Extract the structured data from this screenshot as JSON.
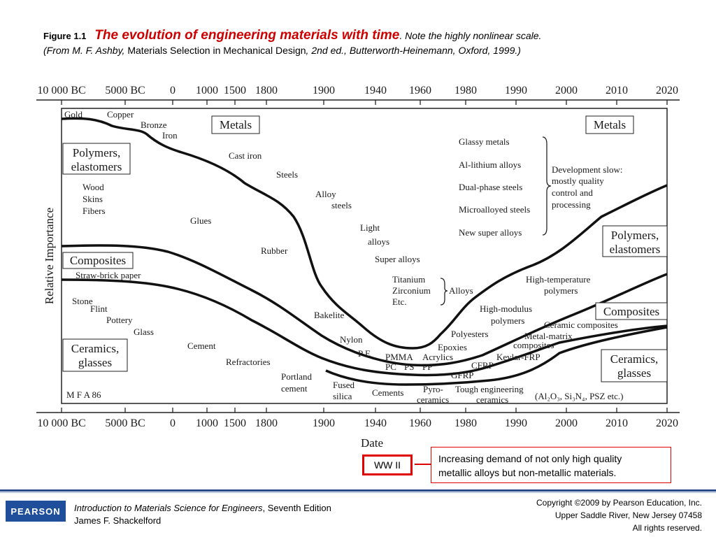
{
  "caption": {
    "figure_label": "Figure 1.1",
    "title": "The evolution of engineering materials with time",
    "title_tail": ". Note the highly nonlinear scale.",
    "source_italic_1": "(From M. F. Ashby, ",
    "source_book": "Materials Selection in Mechanical Design",
    "source_italic_2": ", 2nd ed., Butterworth-Heinemann, Oxford, 1999.)"
  },
  "diagram": {
    "axis_ticks": [
      "10 000 BC",
      "5000 BC",
      "0",
      "1000",
      "1500",
      "1800",
      "1900",
      "1940",
      "1960",
      "1980",
      "1990",
      "2000",
      "2010",
      "2020"
    ],
    "y_label": "Relative Importance",
    "x_label": "Date",
    "boxes": {
      "metals_left": "Metals",
      "metals_right": "Metals",
      "polymers_left_1": "Polymers,",
      "polymers_left_2": "elastomers",
      "polymers_right_1": "Polymers,",
      "polymers_right_2": "elastomers",
      "composites_left": "Composites",
      "composites_right": "Composites",
      "ceramics_left_1": "Ceramics,",
      "ceramics_left_2": "glasses",
      "ceramics_right_1": "Ceramics,",
      "ceramics_right_2": "glasses"
    },
    "labels": {
      "gold": "Gold",
      "copper": "Copper",
      "bronze": "Bronze",
      "iron": "Iron",
      "cast_iron": "Cast iron",
      "steels": "Steels",
      "alloy": "Alloy",
      "alloy_steels": "steels",
      "light": "Light",
      "light_alloys": "alloys",
      "super_alloys": "Super alloys",
      "titanium": "Titanium",
      "zirconium": "Zirconium",
      "etc": "Etc.",
      "alloys": "Alloys",
      "wood": "Wood",
      "skins": "Skins",
      "fibers": "Fibers",
      "glues": "Glues",
      "rubber": "Rubber",
      "bakelite": "Bakelite",
      "nylon": "Nylon",
      "pe": "P E",
      "pmma": "PMMA",
      "acrylics": "Acrylics",
      "pc": "PC",
      "ps": "PS",
      "pp": "PP",
      "epoxies": "Epoxies",
      "polyesters": "Polyesters",
      "high_modulus": "High-modulus",
      "polymers": "polymers",
      "high_temp": "High-temperature",
      "high_temp_2": "polymers",
      "straw": "Straw-brick paper",
      "stone": "Stone",
      "flint": "Flint",
      "pottery": "Pottery",
      "glass": "Glass",
      "cement": "Cement",
      "refractories": "Refractories",
      "portland": "Portland",
      "portland_2": "cement",
      "fused": "Fused",
      "silica": "silica",
      "cements": "Cements",
      "pyro": "Pyro-",
      "pyro_2": "ceramics",
      "tough": "Tough engineering",
      "tough_2": "ceramics",
      "al2o3": "(Al₂O₃, Si₃N₄, PSZ etc.)",
      "gfrp": "GFRP",
      "cfrp": "CFRP",
      "kevlar": "Kevlar-FRP",
      "metal_matrix": "Metal-matrix",
      "metal_matrix_2": "composites",
      "ceramic_comp": "Ceramic composites",
      "glassy": "Glassy metals",
      "al_li": "Al-lithium alloys",
      "dual": "Dual-phase steels",
      "micro": "Microalloyed steels",
      "new_super": "New super alloys",
      "dev_1": "Development slow:",
      "dev_2": "mostly quality",
      "dev_3": "control and",
      "dev_4": "processing",
      "mfa": "M F A 86"
    }
  },
  "annotations": {
    "ww2": "WW II",
    "note_1": "Increasing demand of not only high quality",
    "note_2": "metallic alloys but non-metallic materials."
  },
  "footer": {
    "publisher": "PEARSON",
    "book_title": "Introduction to Materials Science for Engineers",
    "book_edition": ", Seventh Edition",
    "author": "James F. Shackelford",
    "copyright_1": "Copyright ©2009 by Pearson Education, Inc.",
    "copyright_2": "Upper Saddle River, New Jersey 07458",
    "copyright_3": "All rights reserved."
  },
  "colors": {
    "accent_red": "#cc0000",
    "pearson_blue": "#1f4f9a"
  }
}
